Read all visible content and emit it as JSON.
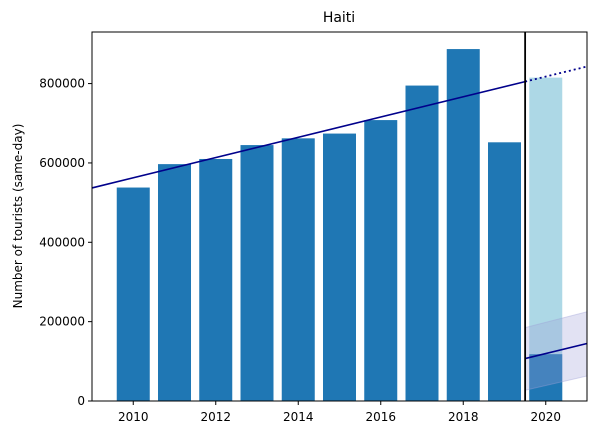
{
  "chart_data": {
    "type": "bar",
    "title": "Haiti",
    "xlabel": "",
    "ylabel": "Number of tourists (same-day)",
    "xlim": [
      2009,
      2021
    ],
    "ylim": [
      0,
      930000
    ],
    "x_ticks": [
      2010,
      2012,
      2014,
      2016,
      2018,
      2020
    ],
    "y_ticks": [
      0,
      200000,
      400000,
      600000,
      800000
    ],
    "grid": false,
    "legend": "none",
    "series": [
      {
        "x": [
          2010,
          2011,
          2012,
          2013,
          2014,
          2015,
          2016,
          2017,
          2018,
          2019
        ],
        "values": [
          538000,
          597000,
          610000,
          645000,
          662000,
          674000,
          708000,
          795000,
          887000,
          652000
        ],
        "color": "#1f77b4"
      },
      {
        "x": [
          2020
        ],
        "values": [
          815000
        ],
        "color": "#add8e6"
      },
      {
        "x": [
          2020
        ],
        "values": [
          118000
        ],
        "color": "#1f77b4"
      }
    ],
    "trend_line": {
      "color": "#00008b",
      "points": [
        [
          2009,
          537000
        ],
        [
          2019.5,
          805000
        ]
      ],
      "dotted_points": [
        [
          2019.5,
          805000
        ],
        [
          2021,
          843000
        ]
      ]
    },
    "forecast_line": {
      "color": "#00008b",
      "points": [
        [
          2019.5,
          107000
        ],
        [
          2021,
          145000
        ]
      ],
      "band": {
        "color": "#9ea0d8",
        "upper": [
          [
            2019.5,
            185000
          ],
          [
            2021,
            225000
          ]
        ],
        "lower": [
          [
            2019.5,
            27000
          ],
          [
            2021,
            63000
          ]
        ]
      }
    },
    "vertical_marker": {
      "x": 2019.5,
      "color": "#000000"
    }
  }
}
